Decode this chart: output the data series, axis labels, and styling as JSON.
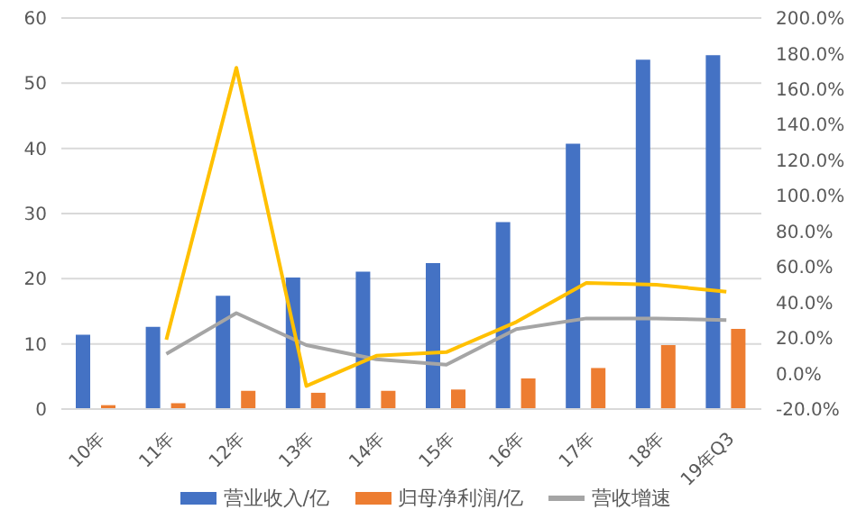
{
  "chart_data": {
    "type": "bar",
    "categories": [
      "10年",
      "11年",
      "12年",
      "13年",
      "14年",
      "15年",
      "16年",
      "17年",
      "18年",
      "19年Q3"
    ],
    "series": [
      {
        "name": "营业收入/亿",
        "color": "#4472c4",
        "values": [
          11.4,
          12.6,
          17.4,
          20.2,
          21.1,
          22.4,
          28.7,
          40.7,
          53.6,
          54.3
        ]
      },
      {
        "name": "归母净利润/亿",
        "color": "#ed7d31",
        "values": [
          0.6,
          0.9,
          2.8,
          2.5,
          2.8,
          3.0,
          4.7,
          6.3,
          9.8,
          12.3
        ]
      },
      {
        "name": "营收增速",
        "type": "line",
        "axis": "y2",
        "color": "#a5a5a5",
        "values": [
          null,
          11,
          34,
          16,
          8,
          5,
          25,
          31,
          31,
          30
        ]
      },
      {
        "type": "line",
        "axis": "y2",
        "color": "#ffc000",
        "values": [
          null,
          19,
          172,
          -7,
          10,
          12,
          29,
          51,
          50,
          46
        ]
      }
    ],
    "ylim": [
      0,
      60
    ],
    "yticks": [
      0,
      10,
      20,
      30,
      40,
      50,
      60
    ],
    "y2lim": [
      -20,
      200
    ],
    "y2ticks": [
      {
        "value": -20,
        "label": "-20.0%"
      },
      {
        "value": 0,
        "label": "0.0%"
      },
      {
        "value": 20,
        "label": "20.0%"
      },
      {
        "value": 40,
        "label": "40.0%"
      },
      {
        "value": 60,
        "label": "60.0%"
      },
      {
        "value": 80,
        "label": "80.0%"
      },
      {
        "value": 100,
        "label": "100.0%"
      },
      {
        "value": 120,
        "label": "120.0%"
      },
      {
        "value": 140,
        "label": "140.0%"
      },
      {
        "value": 160,
        "label": "160.0%"
      },
      {
        "value": 180,
        "label": "180.0%"
      },
      {
        "value": 200,
        "label": "200.0%"
      }
    ],
    "grid": "y",
    "legend": "bottom",
    "marker": "none"
  }
}
